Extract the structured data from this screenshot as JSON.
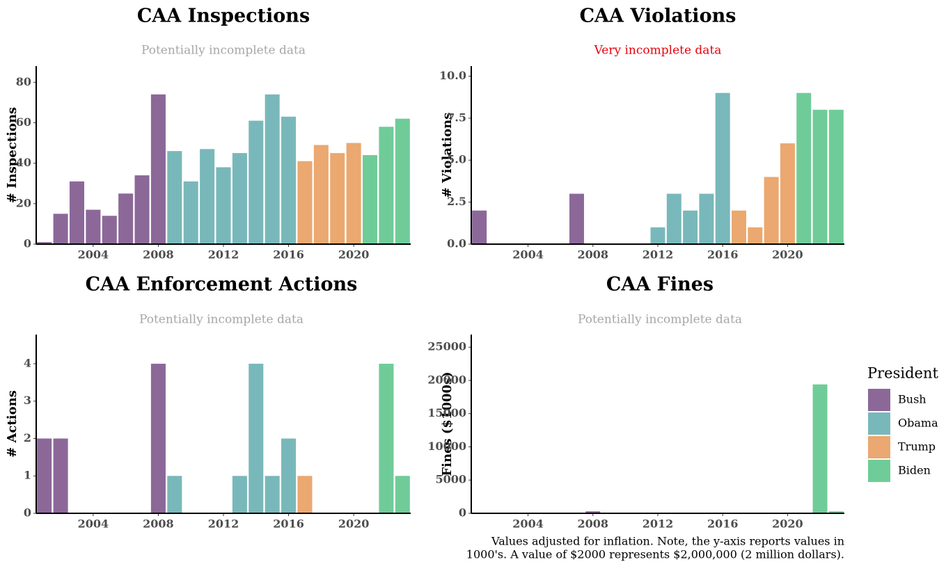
{
  "legend": {
    "title": "President",
    "series": [
      {
        "name": "Bush",
        "color": "#8c6899"
      },
      {
        "name": "Obama",
        "color": "#79b8ba"
      },
      {
        "name": "Trump",
        "color": "#eba870"
      },
      {
        "name": "Biden",
        "color": "#6fcc98"
      }
    ]
  },
  "chart_data": [
    {
      "type": "bar",
      "title": "CAA Inspections",
      "subtitle": "Potentially incomplete data",
      "ylabel": "# Inspections",
      "x": [
        2001,
        2002,
        2003,
        2004,
        2005,
        2006,
        2007,
        2008,
        2009,
        2010,
        2011,
        2012,
        2013,
        2014,
        2015,
        2016,
        2017,
        2018,
        2019,
        2020,
        2021,
        2022,
        2023
      ],
      "values": [
        1,
        15,
        31,
        17,
        14,
        25,
        34,
        74,
        46,
        31,
        47,
        38,
        45,
        61,
        74,
        63,
        41,
        49,
        45,
        50,
        44,
        58,
        62
      ],
      "groups": [
        "Bush",
        "Bush",
        "Bush",
        "Bush",
        "Bush",
        "Bush",
        "Bush",
        "Bush",
        "Obama",
        "Obama",
        "Obama",
        "Obama",
        "Obama",
        "Obama",
        "Obama",
        "Obama",
        "Trump",
        "Trump",
        "Trump",
        "Trump",
        "Biden",
        "Biden",
        "Biden"
      ],
      "xlim": [
        2000.5,
        2023.5
      ],
      "xticks": [
        2004,
        2008,
        2012,
        2016,
        2020
      ],
      "ylim": [
        0,
        88
      ],
      "yticks": [
        0,
        20,
        40,
        60,
        80
      ]
    },
    {
      "type": "bar",
      "title": "CAA Violations",
      "subtitle": "Very incomplete data",
      "subtitle_color": "#e8000b",
      "ylabel": "# Violations",
      "x": [
        2001,
        2007,
        2012,
        2013,
        2014,
        2015,
        2016,
        2017,
        2018,
        2019,
        2020,
        2021,
        2022,
        2023
      ],
      "values": [
        2,
        3,
        1,
        3,
        2,
        3,
        9,
        2,
        1,
        4,
        6,
        9,
        8,
        8
      ],
      "groups": [
        "Bush",
        "Bush",
        "Obama",
        "Obama",
        "Obama",
        "Obama",
        "Obama",
        "Trump",
        "Trump",
        "Trump",
        "Trump",
        "Biden",
        "Biden",
        "Biden"
      ],
      "xlim": [
        2000.5,
        2023.5
      ],
      "xticks": [
        2004,
        2008,
        2012,
        2016,
        2020
      ],
      "ylim": [
        0,
        10.6
      ],
      "yticks": [
        {
          "value": 0,
          "label": "0.0"
        },
        {
          "value": 2.5,
          "label": "2.5"
        },
        {
          "value": 5,
          "label": "5.0"
        },
        {
          "value": 7.5,
          "label": "7.5"
        },
        {
          "value": 10,
          "label": "10.0"
        }
      ]
    },
    {
      "type": "bar",
      "title": "CAA Enforcement Actions",
      "subtitle": "Potentially incomplete data",
      "ylabel": "# Actions",
      "x": [
        2001,
        2002,
        2008,
        2009,
        2013,
        2014,
        2015,
        2016,
        2017,
        2022,
        2023
      ],
      "values": [
        2,
        2,
        4,
        1,
        1,
        4,
        1,
        2,
        1,
        4,
        1
      ],
      "groups": [
        "Bush",
        "Bush",
        "Bush",
        "Obama",
        "Obama",
        "Obama",
        "Obama",
        "Obama",
        "Trump",
        "Biden",
        "Biden"
      ],
      "xlim": [
        2000.5,
        2023.5
      ],
      "xticks": [
        2004,
        2008,
        2012,
        2016,
        2020
      ],
      "ylim": [
        0,
        4.78
      ],
      "yticks": [
        0,
        1,
        2,
        3,
        4
      ]
    },
    {
      "type": "bar",
      "title": "CAA Fines",
      "subtitle": "Potentially incomplete data",
      "ylabel": "Fines ($1000s)",
      "x": [
        2001,
        2008,
        2014,
        2016,
        2022,
        2023
      ],
      "values": [
        100,
        300,
        100,
        100,
        19400,
        300
      ],
      "groups": [
        "Bush",
        "Bush",
        "Obama",
        "Obama",
        "Biden",
        "Biden"
      ],
      "xlim": [
        2000.5,
        2023.5
      ],
      "xticks": [
        2004,
        2008,
        2012,
        2016,
        2020
      ],
      "ylim": [
        0,
        26900
      ],
      "yticks": [
        0,
        5000,
        10000,
        15000,
        20000,
        25000
      ],
      "note": [
        "Values adjusted for inflation. Note, the y-axis reports values in",
        "1000's. A value of $2000 represents $2,000,000 (2 million dollars)."
      ]
    }
  ]
}
